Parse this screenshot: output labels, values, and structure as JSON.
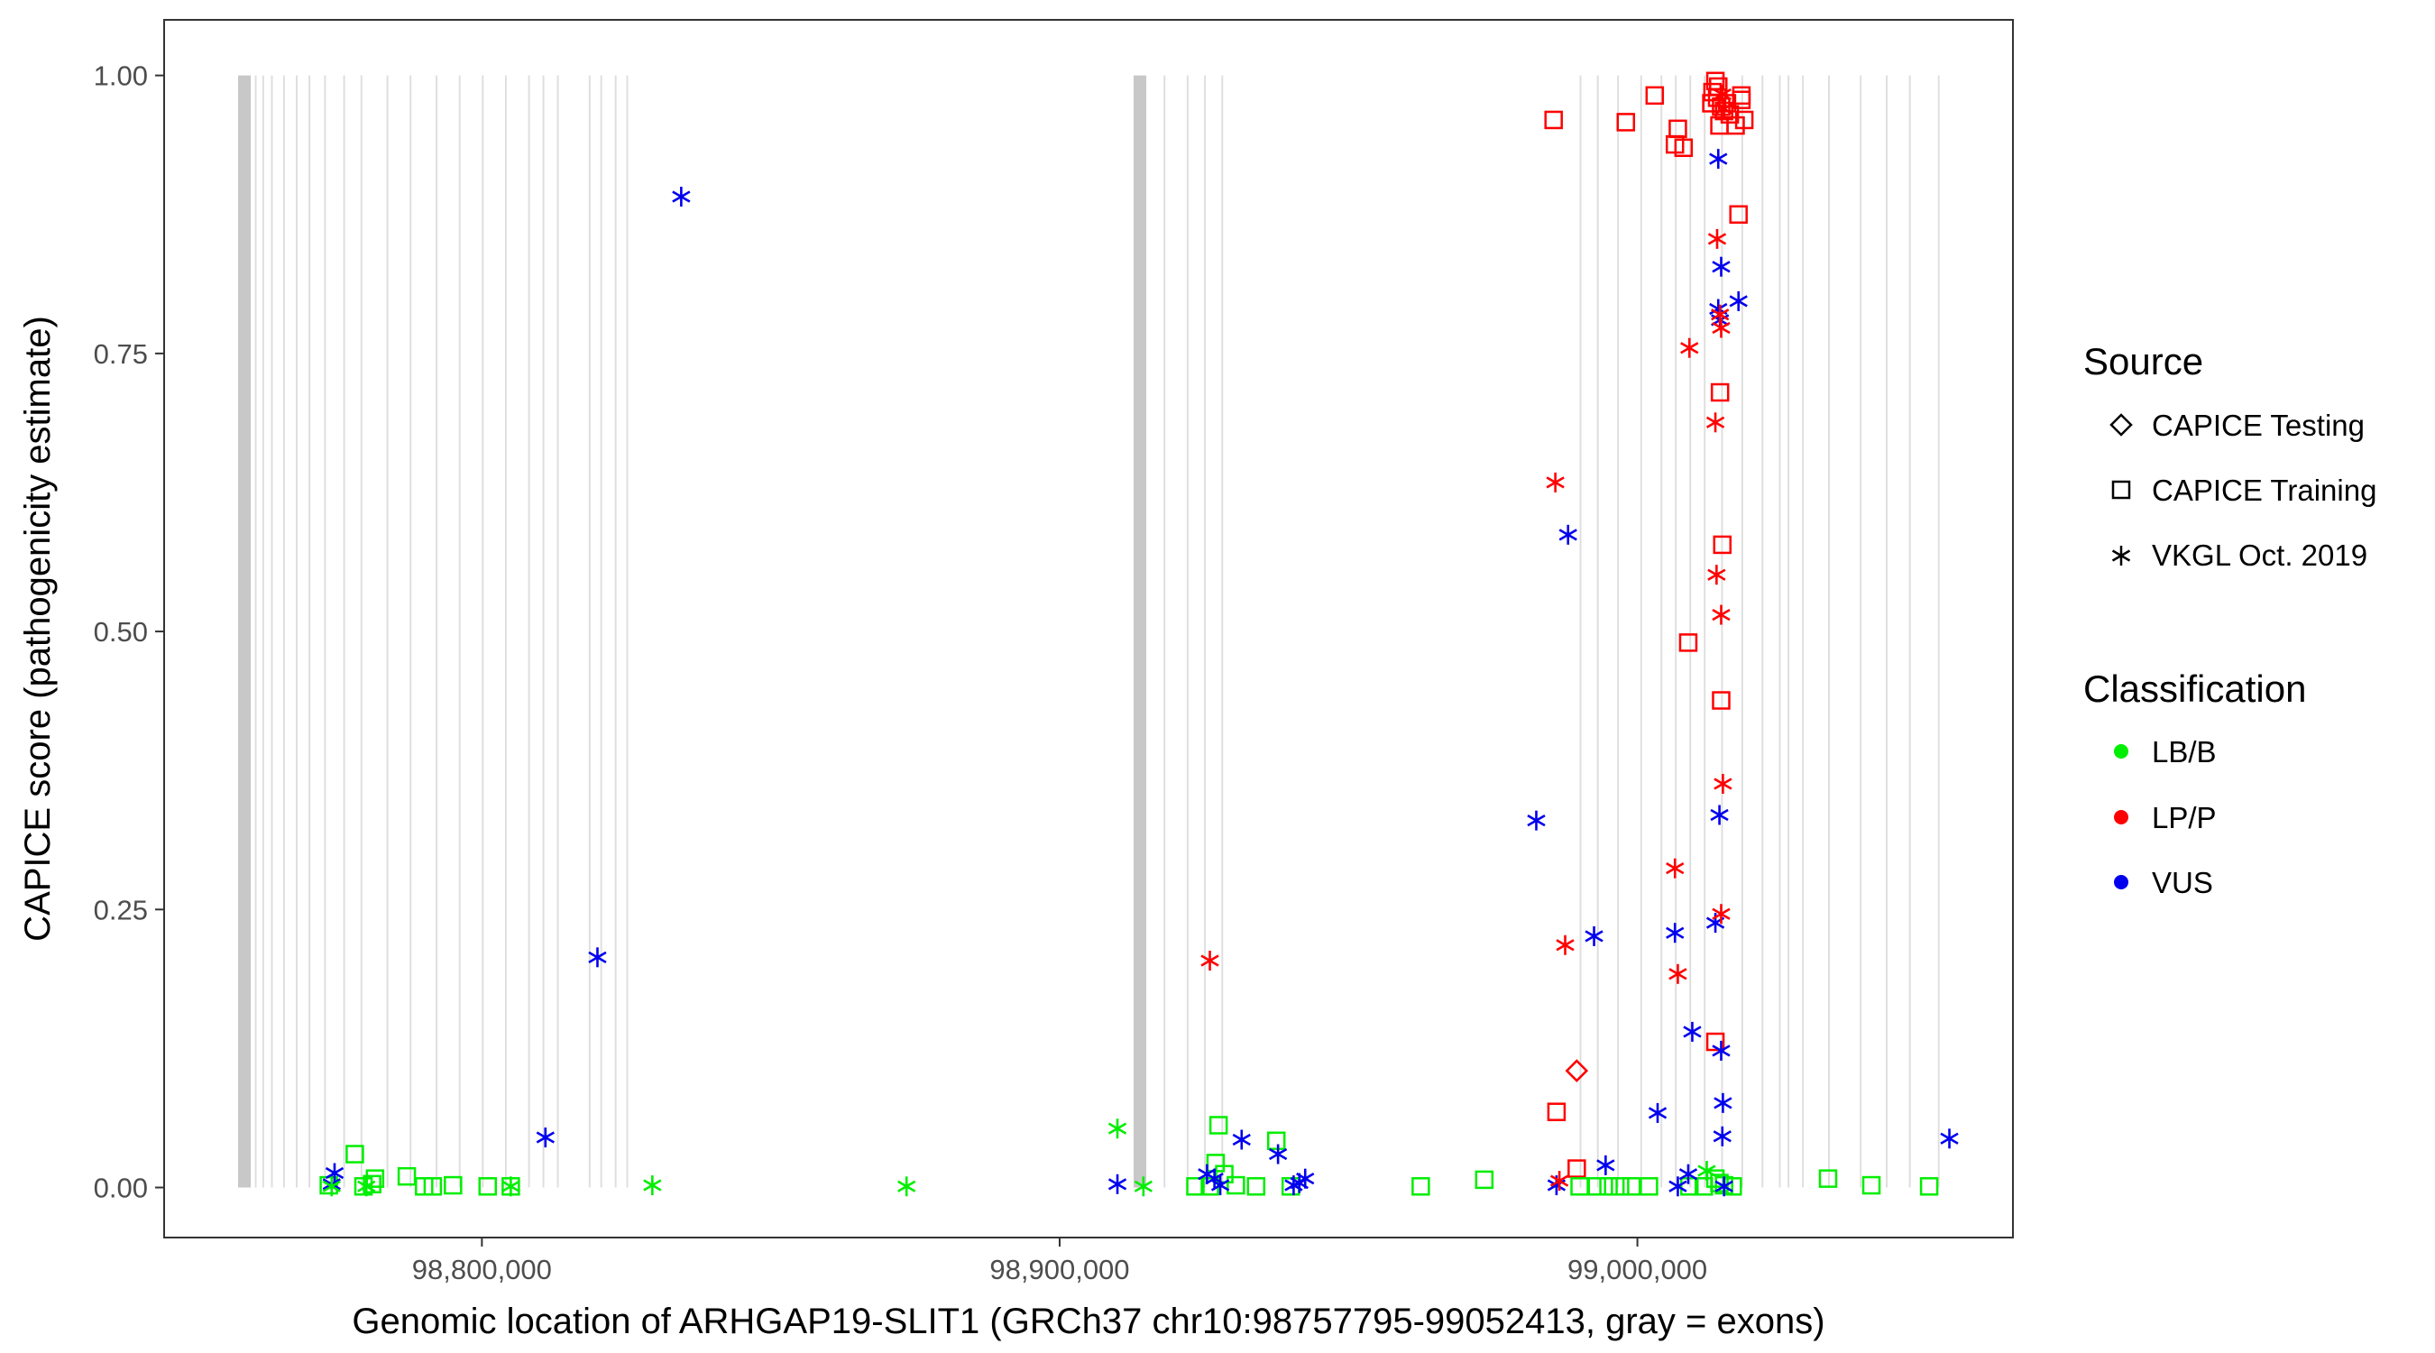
{
  "chart_data": {
    "type": "scatter",
    "xlabel": "Genomic location of ARHGAP19-SLIT1 (GRCh37 chr10:98757795-99052413, gray = exons)",
    "ylabel": "CAPICE score (pathogenicity estimate)",
    "xlim": [
      98745000,
      99065000
    ],
    "ylim": [
      -0.045,
      1.05
    ],
    "x_ticks": [
      98800000,
      98900000,
      99000000
    ],
    "x_tick_labels": [
      "98,800,000",
      "98,900,000",
      "99,000,000"
    ],
    "y_ticks": [
      0,
      0.25,
      0.5,
      0.75,
      1.0
    ],
    "y_tick_labels": [
      "0.00",
      "0.25",
      "0.50",
      "0.75",
      "1.00"
    ],
    "grid": false,
    "legend_placement": "right",
    "exons": [
      [
        98757800,
        98760000
      ],
      [
        98760700,
        98761000
      ],
      [
        98762000,
        98762300
      ],
      [
        98763500,
        98763800
      ],
      [
        98765600,
        98765900
      ],
      [
        98767800,
        98768100
      ],
      [
        98770000,
        98770300
      ],
      [
        98772700,
        98773000
      ],
      [
        98776000,
        98776300
      ],
      [
        98779000,
        98779300
      ],
      [
        98783500,
        98783800
      ],
      [
        98787500,
        98787800
      ],
      [
        98792000,
        98792300
      ],
      [
        98796000,
        98796300
      ],
      [
        98800000,
        98800300
      ],
      [
        98804000,
        98804300
      ],
      [
        98808000,
        98808300
      ],
      [
        98810500,
        98810800
      ],
      [
        98813000,
        98813300
      ],
      [
        98818500,
        98818800
      ],
      [
        98820500,
        98820800
      ],
      [
        98823000,
        98823300
      ],
      [
        98825000,
        98825300
      ],
      [
        98912800,
        98915000
      ],
      [
        98918000,
        98918300
      ],
      [
        98922000,
        98922300
      ],
      [
        98925000,
        98925300
      ],
      [
        98928000,
        98928300
      ],
      [
        98990000,
        98990300
      ],
      [
        98993000,
        98993300
      ],
      [
        98996500,
        98996800
      ],
      [
        99000500,
        99000800
      ],
      [
        99004000,
        99004300
      ],
      [
        99006500,
        99006800
      ],
      [
        99009000,
        99009300
      ],
      [
        99011500,
        99011800
      ],
      [
        99014500,
        99014800
      ],
      [
        99018000,
        99018300
      ],
      [
        99021500,
        99021800
      ],
      [
        99024500,
        99024800
      ],
      [
        99026000,
        99026300
      ],
      [
        99028500,
        99028800
      ],
      [
        99033000,
        99033300
      ],
      [
        99038500,
        99038800
      ],
      [
        99043000,
        99043300
      ],
      [
        99047000,
        99047300
      ],
      [
        99052000,
        99052300
      ]
    ],
    "series": [
      {
        "name": "CAPICE Testing",
        "shape": "diamond",
        "classification": "LP/P",
        "color": "#ff0000",
        "x": [
          98989500
        ],
        "y": [
          0.105
        ]
      },
      {
        "name": "CAPICE Training",
        "shape": "square",
        "classification": "LP/P",
        "color": "#ff0000",
        "x": [
          98985500,
          99003000,
          98998000,
          99006500,
          99007000,
          99008000,
          99013500,
          99014000,
          99013000,
          99013800,
          99012800,
          99014500,
          99015000,
          99016000,
          99017000,
          99018000,
          99018500,
          99014200,
          99015500,
          99017500,
          99018000,
          99014300,
          99014700,
          99008800,
          99014500,
          99013500,
          98986000,
          98989500
        ],
        "y": [
          0.96,
          0.982,
          0.958,
          0.938,
          0.952,
          0.935,
          0.995,
          0.99,
          0.985,
          0.98,
          0.975,
          0.972,
          0.968,
          0.965,
          0.955,
          0.978,
          0.96,
          0.955,
          0.975,
          0.875,
          0.982,
          0.715,
          0.578,
          0.49,
          0.438,
          0.131,
          0.068,
          0.017
        ]
      },
      {
        "name": "CAPICE Training",
        "shape": "square",
        "classification": "LB/B",
        "color": "#00ee00",
        "x": [
          98778000,
          98781500,
          98787000,
          98781000,
          98773500,
          98779500,
          98791500,
          98790000,
          98795000,
          98801000,
          98805000,
          98927500,
          98927000,
          98937500,
          98962500,
          98973500,
          98923500,
          98926000,
          98928500,
          98930500,
          98934000,
          98940000,
          98999000,
          99002000,
          98993000,
          98995000,
          98997000,
          98990000,
          99009000,
          99011500,
          99013500,
          99014200,
          99015000,
          99016500,
          99033000,
          99040500,
          99050500
        ],
        "y": [
          0.03,
          0.008,
          0.01,
          0.003,
          0.002,
          0.001,
          0.001,
          0.001,
          0.002,
          0.001,
          0.001,
          0.056,
          0.022,
          0.042,
          0.001,
          0.007,
          0.001,
          0.001,
          0.012,
          0.002,
          0.001,
          0.001,
          0.001,
          0.001,
          0.001,
          0.001,
          0.001,
          0.001,
          0.001,
          0.001,
          0.008,
          0.004,
          0.002,
          0.001,
          0.008,
          0.002,
          0.001
        ]
      },
      {
        "name": "VKGL Oct. 2019",
        "shape": "asterisk",
        "classification": "VUS",
        "color": "#0000ee",
        "x": [
          98774500,
          98774000,
          98811000,
          98820000,
          98834500,
          98910000,
          98925500,
          98926800,
          98927800,
          98931500,
          98937800,
          98940500,
          98941500,
          98942500,
          98982500,
          98986000,
          98988000,
          98992500,
          98994500,
          99003500,
          99006500,
          99007000,
          99008800,
          99009500,
          99014000,
          99014500,
          99014000,
          99014300,
          99017500,
          99014200,
          99013500,
          99014500,
          99014800,
          99014700,
          99015000,
          99054000
        ],
        "y": [
          0.013,
          0.003,
          0.045,
          0.207,
          0.891,
          0.003,
          0.012,
          0.008,
          0.002,
          0.043,
          0.03,
          0.002,
          0.004,
          0.008,
          0.33,
          0.002,
          0.587,
          0.226,
          0.02,
          0.067,
          0.229,
          0.001,
          0.012,
          0.14,
          0.925,
          0.828,
          0.79,
          0.78,
          0.797,
          0.335,
          0.238,
          0.123,
          0.076,
          0.046,
          0.001,
          0.044
        ]
      },
      {
        "name": "VKGL Oct. 2019",
        "shape": "asterisk",
        "classification": "LP/P",
        "color": "#ff0000",
        "x": [
          98926000,
          98985800,
          98987500,
          99006500,
          99007000,
          99009000,
          99013800,
          99014300,
          99014500,
          99013500,
          99013700,
          99014500,
          99014800,
          99014500,
          99014700,
          99015000,
          98986500
        ],
        "y": [
          0.204,
          0.634,
          0.218,
          0.287,
          0.192,
          0.755,
          0.853,
          0.785,
          0.773,
          0.688,
          0.551,
          0.515,
          0.363,
          0.246,
          0.983,
          0.97,
          0.006
        ]
      },
      {
        "name": "VKGL Oct. 2019",
        "shape": "asterisk",
        "classification": "LB/B",
        "color": "#00ee00",
        "x": [
          98774000,
          98780000,
          98805000,
          98829500,
          98873500,
          98910000,
          98914500,
          99012000
        ],
        "y": [
          0.001,
          0.001,
          0.001,
          0.002,
          0.001,
          0.053,
          0.001,
          0.015
        ]
      }
    ]
  },
  "legend": {
    "source_title": "Source",
    "source_items": [
      {
        "label": "CAPICE Testing",
        "shape": "diamond"
      },
      {
        "label": "CAPICE Training",
        "shape": "square"
      },
      {
        "label": "VKGL Oct. 2019",
        "shape": "asterisk"
      }
    ],
    "class_title": "Classification",
    "class_items": [
      {
        "label": "LB/B",
        "color": "#00ee00"
      },
      {
        "label": "LP/P",
        "color": "#ff0000"
      },
      {
        "label": "VUS",
        "color": "#0000ee"
      }
    ]
  }
}
